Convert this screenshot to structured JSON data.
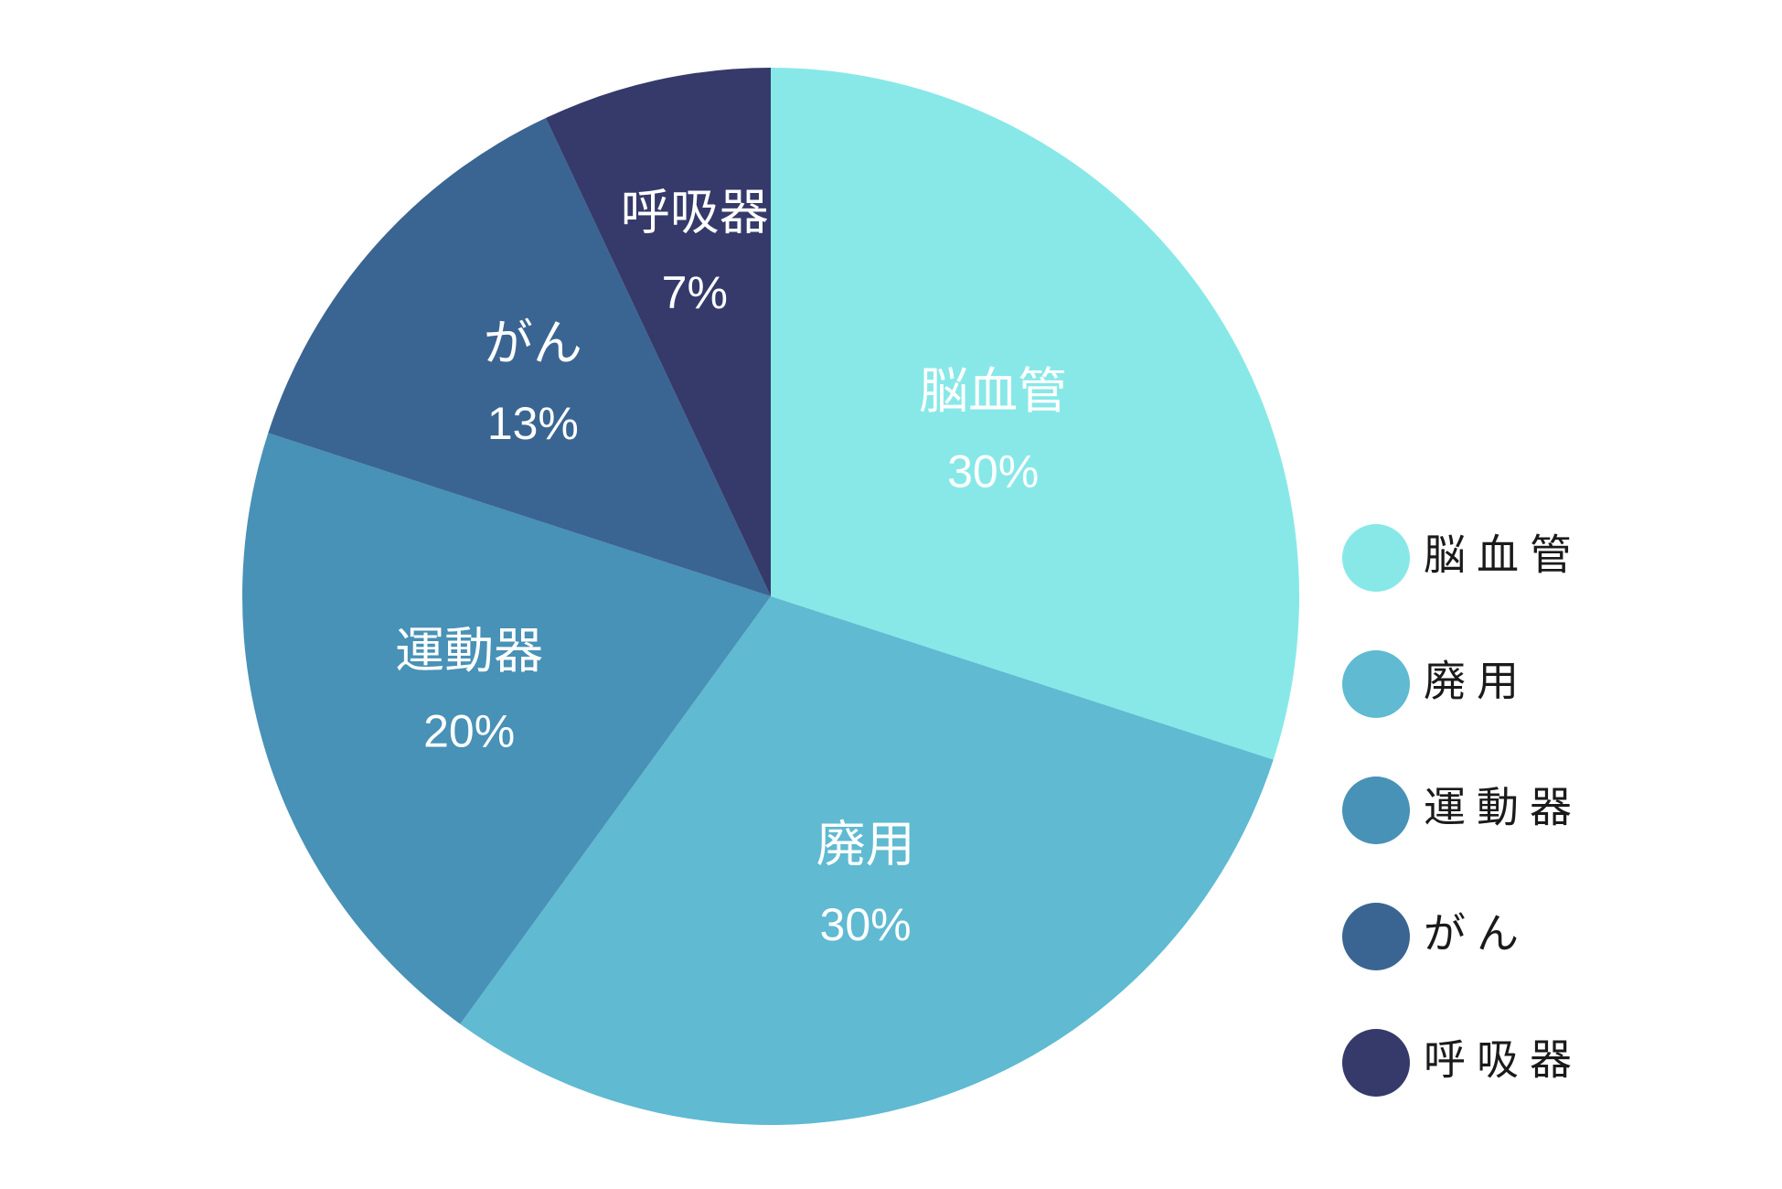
{
  "chart_data": {
    "type": "pie",
    "title": "",
    "start_angle_deg": 0,
    "direction": "clockwise",
    "legend_position": "right",
    "slices": [
      {
        "label": "脳血管",
        "value": 30,
        "value_label": "30%",
        "color": "#88E8E8"
      },
      {
        "label": "廃用",
        "value": 30,
        "value_label": "30%",
        "color": "#5FBAD2"
      },
      {
        "label": "運動器",
        "value": 20,
        "value_label": "20%",
        "color": "#4891B7"
      },
      {
        "label": "がん",
        "value": 13,
        "value_label": "13%",
        "color": "#3A6592"
      },
      {
        "label": "呼吸器",
        "value": 7,
        "value_label": "7%",
        "color": "#353A6B"
      }
    ]
  }
}
